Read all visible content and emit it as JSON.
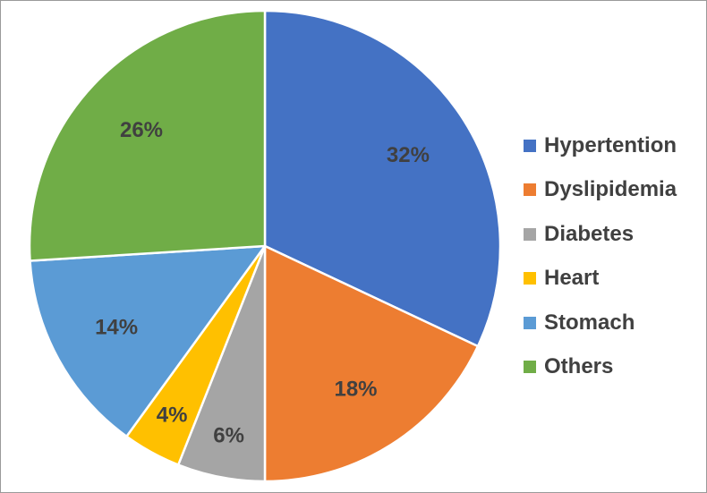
{
  "chart_data": {
    "type": "pie",
    "categories": [
      "Hypertention",
      "Dyslipidemia",
      "Diabetes",
      "Heart",
      "Stomach",
      "Others"
    ],
    "values": [
      32,
      18,
      6,
      4,
      14,
      26
    ],
    "value_labels": [
      "32%",
      "18%",
      "6%",
      "4%",
      "14%",
      "26%"
    ],
    "colors": [
      "#4472c4",
      "#ed7d31",
      "#a5a5a5",
      "#ffc000",
      "#5b9bd5",
      "#70ad47"
    ],
    "start_angle_deg": 0,
    "direction": "clockwise",
    "legend_position": "right",
    "legend": [
      {
        "label": "Hypertention",
        "color": "#4472c4"
      },
      {
        "label": "Dyslipidemia",
        "color": "#ed7d31"
      },
      {
        "label": "Diabetes",
        "color": "#a5a5a5"
      },
      {
        "label": "Heart",
        "color": "#ffc000"
      },
      {
        "label": "Stomach",
        "color": "#5b9bd5"
      },
      {
        "label": "Others",
        "color": "#70ad47"
      }
    ]
  }
}
